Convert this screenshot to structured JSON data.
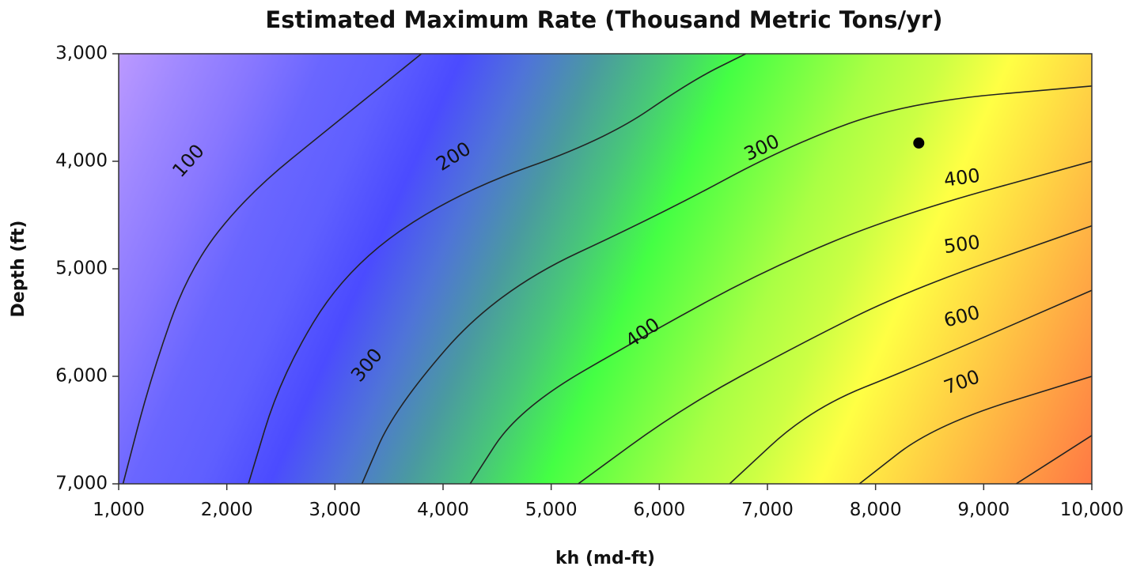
{
  "chart_data": {
    "type": "contour",
    "title": "Estimated Maximum Rate (Thousand Metric Tons/yr)",
    "xlabel": "kh (md-ft)",
    "ylabel": "Depth (ft)",
    "xlim": [
      1000,
      10000
    ],
    "ylim": [
      3000,
      7000
    ],
    "y_inverted": true,
    "x_ticks": [
      "1,000",
      "2,000",
      "3,000",
      "4,000",
      "5,000",
      "6,000",
      "7,000",
      "8,000",
      "9,000",
      "10,000"
    ],
    "y_ticks": [
      "3,000",
      "4,000",
      "5,000",
      "6,000",
      "7,000"
    ],
    "grid": false,
    "levels": [
      50,
      100,
      150,
      200,
      250,
      300,
      350,
      400,
      450,
      500,
      550,
      600,
      650,
      700,
      750,
      800
    ],
    "labeled_levels": [
      100,
      200,
      300,
      400,
      500,
      600,
      700
    ],
    "colors": [
      "#bb99ff",
      "#9f88ff",
      "#8877ff",
      "#6a66ff",
      "#5f5fff",
      "#4b4bff",
      "#4f74d8",
      "#4a9aa0",
      "#48c878",
      "#44ff44",
      "#77ff44",
      "#aaff44",
      "#ccff44",
      "#ffff44",
      "#ffdd44",
      "#ffbb44",
      "#ff9944",
      "#ff7744"
    ],
    "contour_lines": [
      {
        "level": 100,
        "points": [
          [
            1040,
            7000
          ],
          [
            1300,
            6000
          ],
          [
            1650,
            5000
          ],
          [
            2200,
            4300
          ],
          [
            3000,
            3650
          ],
          [
            3800,
            3000
          ]
        ]
      },
      {
        "level": 200,
        "points": [
          [
            2200,
            7000
          ],
          [
            2500,
            6000
          ],
          [
            3100,
            5000
          ],
          [
            4100,
            4300
          ],
          [
            5500,
            3800
          ],
          [
            6300,
            3250
          ],
          [
            6800,
            3000
          ]
        ]
      },
      {
        "level": 300,
        "points": [
          [
            3250,
            7000
          ],
          [
            3550,
            6300
          ],
          [
            4500,
            5200
          ],
          [
            6000,
            4500
          ],
          [
            7200,
            3850
          ],
          [
            8300,
            3450
          ],
          [
            10000,
            3300
          ]
        ]
      },
      {
        "level": 400,
        "points": [
          [
            4250,
            7000
          ],
          [
            4700,
            6300
          ],
          [
            5900,
            5600
          ],
          [
            7000,
            5000
          ],
          [
            8200,
            4500
          ],
          [
            10000,
            4000
          ]
        ]
      },
      {
        "level": 500,
        "points": [
          [
            5250,
            7000
          ],
          [
            6200,
            6300
          ],
          [
            7300,
            5700
          ],
          [
            8300,
            5200
          ],
          [
            10000,
            4600
          ]
        ]
      },
      {
        "level": 600,
        "points": [
          [
            6650,
            7000
          ],
          [
            7400,
            6300
          ],
          [
            8400,
            5900
          ],
          [
            10000,
            5200
          ]
        ]
      },
      {
        "level": 700,
        "points": [
          [
            7850,
            7000
          ],
          [
            8550,
            6450
          ],
          [
            10000,
            6000
          ]
        ]
      },
      {
        "level": 800,
        "points": [
          [
            9300,
            7000
          ],
          [
            10000,
            6550
          ]
        ]
      }
    ],
    "contour_labels": [
      {
        "text": "100",
        "x": 1650,
        "y": 4000,
        "angle": -48
      },
      {
        "text": "200",
        "x": 4100,
        "y": 3960,
        "angle": -32
      },
      {
        "text": "300",
        "x": 6950,
        "y": 3880,
        "angle": -25
      },
      {
        "text": "400",
        "x": 8800,
        "y": 4160,
        "angle": -8
      },
      {
        "text": "500",
        "x": 8800,
        "y": 4780,
        "angle": -8
      },
      {
        "text": "600",
        "x": 8800,
        "y": 5450,
        "angle": -15
      },
      {
        "text": "700",
        "x": 8800,
        "y": 6060,
        "angle": -20
      },
      {
        "text": "300",
        "x": 3300,
        "y": 5900,
        "angle": -50
      },
      {
        "text": "400",
        "x": 5850,
        "y": 5600,
        "angle": -35
      }
    ],
    "marker": {
      "x": 8400,
      "y": 3830
    }
  }
}
